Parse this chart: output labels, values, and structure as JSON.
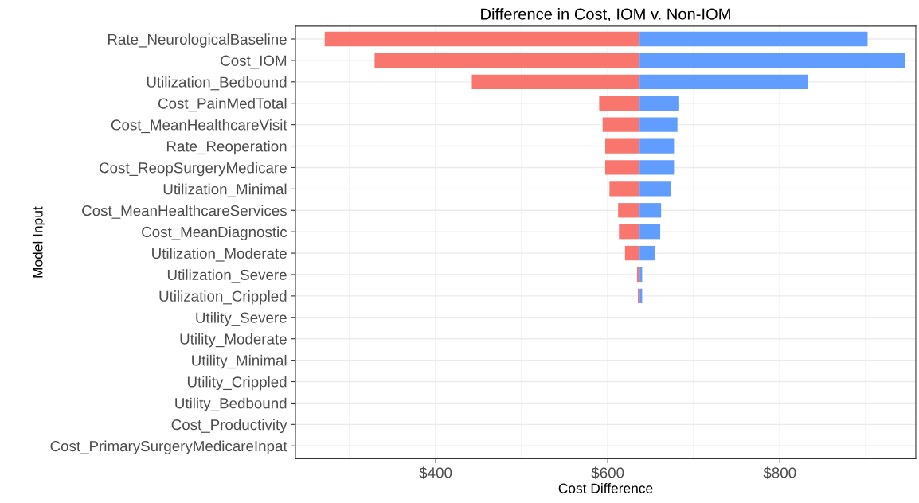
{
  "chart_data": {
    "type": "bar",
    "orientation": "horizontal",
    "title": "Difference in Cost, IOM v. Non-IOM",
    "xlabel": "Cost Difference",
    "ylabel": "Model Input",
    "categories": [
      "Rate_NeurologicalBaseline",
      "Cost_IOM",
      "Utilization_Bedbound",
      "Cost_PainMedTotal",
      "Cost_MeanHealthcareVisit",
      "Rate_Reoperation",
      "Cost_ReopSurgeryMedicare",
      "Utilization_Minimal",
      "Cost_MeanHealthcareServices",
      "Cost_MeanDiagnostic",
      "Utilization_Moderate",
      "Utilization_Severe",
      "Utilization_Crippled",
      "Utility_Severe",
      "Utility_Moderate",
      "Utility_Minimal",
      "Utility_Crippled",
      "Utility_Bedbound",
      "Cost_Productivity",
      "Cost_PrimarySurgeryMedicareInpat"
    ],
    "series": [
      {
        "color": "#f8766d",
        "base": [
          271,
          329,
          442,
          590,
          594,
          597,
          597,
          602,
          612,
          613,
          620,
          634,
          635,
          null,
          null,
          null,
          null,
          null,
          null,
          null
        ],
        "values": [
          366,
          308,
          195,
          47,
          43,
          40,
          40,
          35,
          25,
          24,
          17,
          3,
          2,
          null,
          null,
          null,
          null,
          null,
          null,
          null
        ]
      },
      {
        "color": "#619cff",
        "base": [
          637,
          637,
          637,
          637,
          637,
          637,
          637,
          637,
          637,
          637,
          637,
          637,
          637,
          null,
          null,
          null,
          null,
          null,
          null,
          null
        ],
        "values": [
          265,
          309,
          196,
          46,
          44,
          40,
          40,
          36,
          25,
          24,
          18,
          3,
          3,
          null,
          null,
          null,
          null,
          null,
          null,
          null
        ]
      }
    ],
    "xlim": [
      237,
      958
    ],
    "xticks": [
      {
        "value": 300,
        "label": null
      },
      {
        "value": 400,
        "label": "$400"
      },
      {
        "value": 500,
        "label": null
      },
      {
        "value": 600,
        "label": "$600"
      },
      {
        "value": 700,
        "label": null
      },
      {
        "value": 800,
        "label": "$800"
      },
      {
        "value": 900,
        "label": null
      }
    ],
    "grid": true
  }
}
